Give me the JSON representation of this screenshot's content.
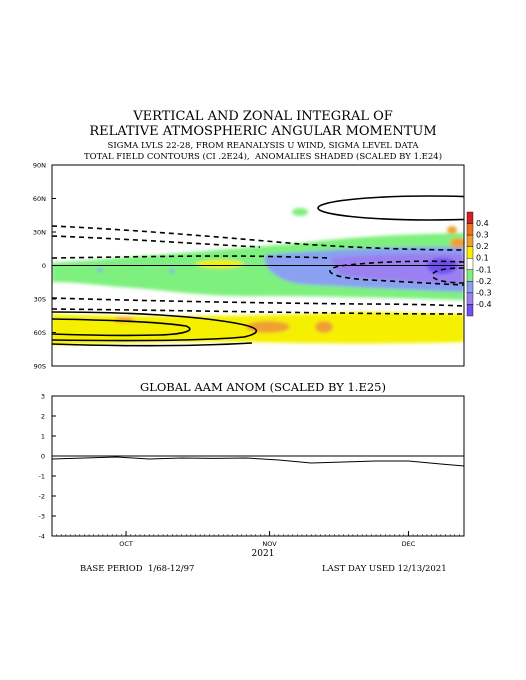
{
  "chart_data": [
    {
      "type": "heatmap",
      "title": "VERTICAL AND ZONAL INTEGRAL OF",
      "title2": "RELATIVE ATMOSPHERIC ANGULAR MOMENTUM",
      "subtitle": "SIGMA LVLS 22-28, FROM REANALYSIS U WIND, SIGMA LEVEL DATA",
      "subtitle2": "TOTAL FIELD CONTOURS (CI .2E24),  ANOMALIES SHADED (SCALED BY 1.E24)",
      "y_ticks": [
        "90N",
        "60N",
        "30N",
        "0",
        "30S",
        "60S",
        "90S"
      ],
      "y_tick_values": [
        90,
        60,
        30,
        0,
        -30,
        -60,
        -90
      ],
      "ylim": [
        -90,
        90
      ],
      "x_range": [
        "2021-09-15",
        "2021-12-13"
      ],
      "colorbar": {
        "labels": [
          "0.4",
          "0.3",
          "0.2",
          "0.1",
          "-0.1",
          "-0.2",
          "-0.3",
          "-0.4"
        ],
        "colors": [
          "#d42020",
          "#f07020",
          "#f0a030",
          "#f5f000",
          "#ffffff",
          "#7ef07e",
          "#8aa0f0",
          "#9a80f0",
          "#7050f0"
        ]
      }
    },
    {
      "type": "line",
      "title": "GLOBAL AAM ANOM (SCALED BY 1.E25)",
      "y_ticks": [
        3,
        2,
        1,
        0,
        -1,
        -2,
        -3,
        -4
      ],
      "ylim": [
        -4,
        3
      ],
      "x_ticks": [
        "OCT",
        "NOV",
        "DEC"
      ],
      "x_tick_dates": [
        "2021-10-01",
        "2021-11-01",
        "2021-12-01"
      ],
      "xlabel": "2021",
      "series": [
        {
          "x": [
            "2021-09-15",
            "2021-09-22",
            "2021-09-29",
            "2021-10-06",
            "2021-10-13",
            "2021-10-20",
            "2021-10-27",
            "2021-11-03",
            "2021-11-10",
            "2021-11-17",
            "2021-11-24",
            "2021-12-01",
            "2021-12-08",
            "2021-12-13"
          ],
          "y": [
            -0.15,
            -0.1,
            -0.05,
            -0.15,
            -0.1,
            -0.12,
            -0.1,
            -0.2,
            -0.35,
            -0.3,
            -0.25,
            -0.25,
            -0.4,
            -0.5
          ]
        }
      ]
    }
  ],
  "footer": {
    "year": "2021",
    "base_period": "BASE PERIOD  1/68-12/97",
    "last_day": "LAST DAY USED 12/13/2021"
  }
}
